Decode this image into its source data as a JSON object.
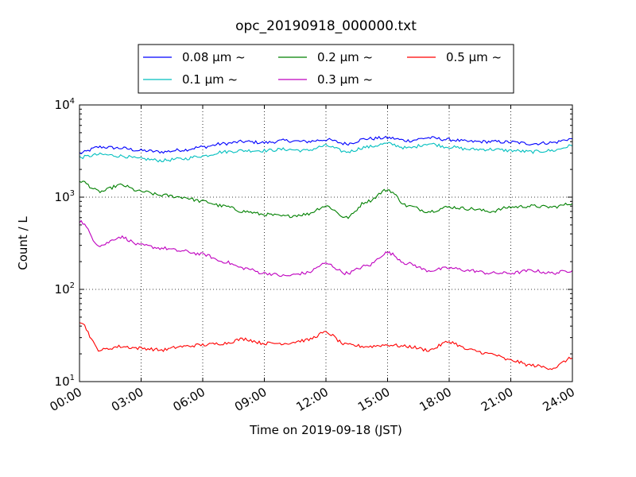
{
  "chart_data": {
    "type": "line",
    "title": "opc_20190918_000000.txt",
    "xlabel": "Time on 2019-09-18 (JST)",
    "ylabel": "Count / L",
    "yscale": "log",
    "ylim": [
      10,
      10000
    ],
    "xlim": [
      "00:00",
      "24:00"
    ],
    "x_tick_labels": [
      "00:00",
      "03:00",
      "06:00",
      "09:00",
      "12:00",
      "15:00",
      "18:00",
      "21:00",
      "24:00"
    ],
    "y_tick_labels": [
      {
        "value": 10,
        "base": "10",
        "exp": "1"
      },
      {
        "value": 100,
        "base": "10",
        "exp": "2"
      },
      {
        "value": 1000,
        "base": "10",
        "exp": "3"
      },
      {
        "value": 10000,
        "base": "10",
        "exp": "4"
      }
    ],
    "grid": true,
    "legend_position": "top-center",
    "x": [
      "00:00",
      "01:00",
      "02:00",
      "03:00",
      "04:00",
      "05:00",
      "06:00",
      "07:00",
      "08:00",
      "09:00",
      "10:00",
      "11:00",
      "12:00",
      "13:00",
      "14:00",
      "15:00",
      "16:00",
      "17:00",
      "18:00",
      "19:00",
      "20:00",
      "21:00",
      "22:00",
      "23:00",
      "24:00"
    ],
    "series": [
      {
        "name": "0.08 μm ~",
        "color": "#0000ff",
        "values": [
          3000,
          3500,
          3400,
          3200,
          3100,
          3250,
          3500,
          3800,
          4000,
          3900,
          4100,
          4000,
          4200,
          3800,
          4300,
          4400,
          4100,
          4400,
          4200,
          4000,
          4000,
          3950,
          3800,
          3900,
          4300
        ]
      },
      {
        "name": "0.1 μm ~",
        "color": "#00bfbf",
        "values": [
          2700,
          2900,
          2800,
          2600,
          2500,
          2600,
          2800,
          3100,
          3200,
          3200,
          3300,
          3200,
          3600,
          3100,
          3500,
          3800,
          3400,
          3800,
          3500,
          3300,
          3300,
          3200,
          3100,
          3200,
          3600
        ]
      },
      {
        "name": "0.2 μm ~",
        "color": "#008000",
        "values": [
          1500,
          1150,
          1350,
          1150,
          1050,
          1000,
          900,
          800,
          700,
          650,
          620,
          650,
          800,
          600,
          900,
          1200,
          800,
          700,
          780,
          750,
          700,
          780,
          800,
          780,
          850
        ]
      },
      {
        "name": "0.3 μm ~",
        "color": "#bf00bf",
        "values": [
          550,
          300,
          370,
          300,
          280,
          260,
          240,
          200,
          170,
          150,
          140,
          150,
          190,
          150,
          180,
          250,
          190,
          160,
          170,
          160,
          150,
          150,
          160,
          150,
          160
        ]
      },
      {
        "name": "0.5 μm ~",
        "color": "#ff0000",
        "values": [
          45,
          22,
          24,
          23,
          22,
          24,
          25,
          26,
          29,
          26,
          26,
          28,
          34,
          25,
          24,
          25,
          24,
          22,
          27,
          22,
          20,
          17,
          15,
          14,
          18
        ]
      }
    ]
  }
}
